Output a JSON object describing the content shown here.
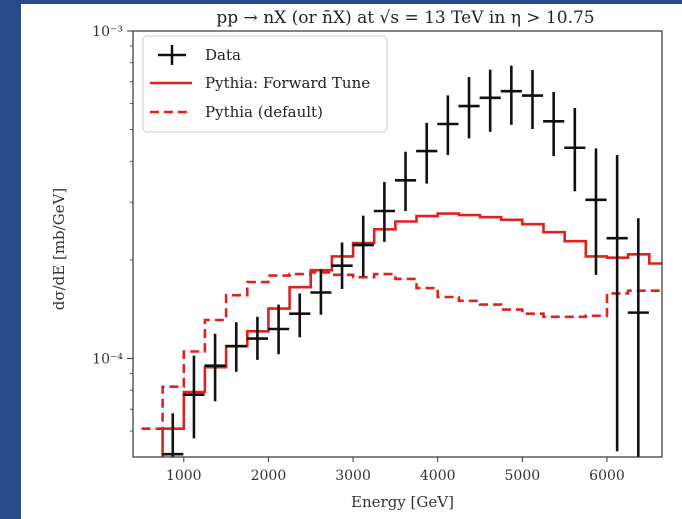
{
  "theme": {
    "frame_color": "#2a4a8c",
    "data_color": "#111111",
    "pythia_color": "#dd2222"
  },
  "chart_data": {
    "type": "line",
    "title": "pp → nX (or n̄X) at √s = 13 TeV in η > 10.75",
    "xlabel": "Energy [GeV]",
    "ylabel": "dσ/dE [mb/GeV]",
    "xlim": [
      400,
      6650
    ],
    "ylim": [
      5e-05,
      0.001
    ],
    "yscale": "log",
    "x_ticks": [
      1000,
      2000,
      3000,
      4000,
      5000,
      6000
    ],
    "y_tick_labels": [
      {
        "value": 0.001,
        "label": "10⁻³"
      },
      {
        "value": 0.0001,
        "label": "10⁻⁴"
      }
    ],
    "grid": false,
    "legend_position": "top-left",
    "data_series": {
      "name": "Data",
      "x": [
        870,
        1120,
        1370,
        1620,
        1870,
        2120,
        2370,
        2620,
        2870,
        3120,
        3370,
        3620,
        3870,
        4120,
        4370,
        4620,
        4870,
        5120,
        5370,
        5620,
        5870,
        6120,
        6370
      ],
      "y": [
        5.1e-05,
        7.75e-05,
        9.5e-05,
        0.000109,
        0.000115,
        0.000123,
        0.000137,
        0.000159,
        0.000192,
        0.000222,
        0.000282,
        0.00035,
        0.00043,
        0.00052,
        0.00059,
        0.000625,
        0.000655,
        0.000635,
        0.00053,
        0.00044,
        0.000305,
        0.000233,
        0.000138
      ],
      "y_low": [
        4.4e-05,
        5.7e-05,
        7.4e-05,
        9.1e-05,
        9.9e-05,
        0.000103,
        0.000116,
        0.000136,
        0.000163,
        0.000178,
        0.000227,
        0.000282,
        0.000342,
        0.000418,
        0.00047,
        0.000492,
        0.000517,
        0.000502,
        0.000415,
        0.000324,
        0.00018,
        5.2e-05,
        3.5e-05
      ],
      "y_high": [
        6.8e-05,
        0.000102,
        0.000119,
        0.000129,
        0.000134,
        0.000146,
        0.000158,
        0.000187,
        0.000226,
        0.000273,
        0.000346,
        0.000428,
        0.000524,
        0.000636,
        0.000723,
        0.000762,
        0.000784,
        0.00076,
        0.000651,
        0.000582,
        0.000438,
        0.000418,
        0.000268
      ],
      "x_half_width": 125
    },
    "step_series": [
      {
        "name": "Pythia: Forward Tune",
        "style": "solid",
        "edges": [
          500,
          750,
          1000,
          1250,
          1500,
          1750,
          2000,
          2250,
          2500,
          2750,
          3000,
          3250,
          3500,
          3750,
          4000,
          4250,
          4500,
          4750,
          5000,
          5250,
          5500,
          5750,
          6000,
          6250,
          6500
        ],
        "values": [
          4.9e-05,
          6.1e-05,
          7.9e-05,
          9.4e-05,
          0.000109,
          0.000121,
          0.000142,
          0.000165,
          0.000186,
          0.000205,
          0.000225,
          0.000248,
          0.000262,
          0.000272,
          0.000277,
          0.000274,
          0.00027,
          0.000265,
          0.000257,
          0.000243,
          0.000228,
          0.000205,
          0.000203,
          0.000208,
          0.000195
        ]
      },
      {
        "name": "Pythia (default)",
        "style": "dashed",
        "edges": [
          500,
          750,
          1000,
          1250,
          1500,
          1750,
          2000,
          2250,
          2500,
          2750,
          3000,
          3250,
          3500,
          3750,
          4000,
          4250,
          4500,
          4750,
          5000,
          5250,
          5500,
          5750,
          6000,
          6250,
          6500
        ],
        "values": [
          6.1e-05,
          8.2e-05,
          0.000105,
          0.000131,
          0.000156,
          0.000171,
          0.000179,
          0.000181,
          0.000183,
          0.00018,
          0.000177,
          0.000181,
          0.000175,
          0.000164,
          0.000154,
          0.00015,
          0.000146,
          0.000141,
          0.000137,
          0.000134,
          0.000134,
          0.000135,
          0.000158,
          0.000161,
          0.000161
        ]
      }
    ]
  }
}
